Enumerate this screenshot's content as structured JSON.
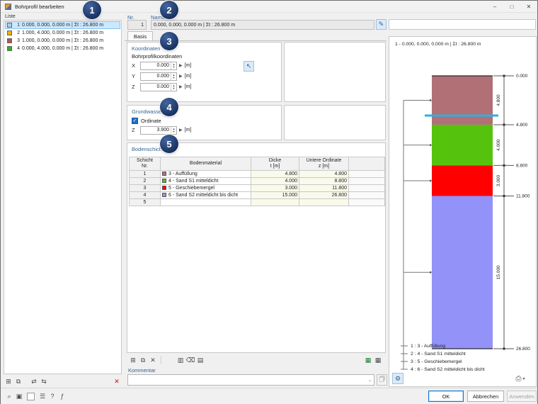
{
  "window": {
    "title": "Bohrprofil bearbeiten",
    "minimize": "–",
    "maximize": "□",
    "close": "✕"
  },
  "annotations": [
    "1",
    "2",
    "3",
    "4",
    "5"
  ],
  "liste": {
    "label": "Liste",
    "items": [
      {
        "num": "1",
        "text": "0.000, 0.000, 0.000 m | Σt : 26.800 m",
        "color": "#a9cfe8",
        "selected": true
      },
      {
        "num": "2",
        "text": "1.000, 4.000, 0.000 m | Σt : 26.800 m",
        "color": "#f2b000",
        "selected": false
      },
      {
        "num": "3",
        "text": "1.000, 0.000, 0.000 m | Σt : 26.800 m",
        "color": "#b25454",
        "selected": false
      },
      {
        "num": "4",
        "text": "0.000, 4.000, 0.000 m | Σt : 26.800 m",
        "color": "#2fb11d",
        "selected": false
      }
    ]
  },
  "header": {
    "nr_label": "Nr.",
    "nr_value": "1",
    "name_label": "Name",
    "name_value": "0.000, 0.000, 0.000 m | Σt : 26.800 m"
  },
  "tab": {
    "label": "Basis"
  },
  "koordinaten": {
    "title": "Koordinaten",
    "subtitle": "Bohrprofilkoordinaten",
    "fields": [
      {
        "label": "X",
        "value": "0.000",
        "unit": "[m]"
      },
      {
        "label": "Y",
        "value": "0.000",
        "unit": "[m]"
      },
      {
        "label": "Z",
        "value": "0.000",
        "unit": "[m]"
      }
    ]
  },
  "grundwasser": {
    "title": "Grundwasser",
    "checkbox_label": "Ordinate",
    "checked": true,
    "field": {
      "label": "Z",
      "value": "3.900",
      "unit": "[m]"
    }
  },
  "bodenschichten": {
    "title": "Bodenschichten",
    "columns": [
      [
        "Schicht",
        "Nr."
      ],
      [
        "Bodenmaterial"
      ],
      [
        "Dicke",
        "t [m]"
      ],
      [
        "Untere Ordinate",
        "z [m]"
      ],
      [
        ""
      ]
    ],
    "rows": [
      {
        "nr": "1",
        "color": "#b17076",
        "material": "3 - Auffüllung",
        "dicke": "4.800",
        "ordinate": "4.800"
      },
      {
        "nr": "2",
        "color": "#55c30d",
        "material": "4 - Sand S1 mitteldicht",
        "dicke": "4.000",
        "ordinate": "8.800"
      },
      {
        "nr": "3",
        "color": "#fe0000",
        "material": "5 - Geschiebemergel",
        "dicke": "3.000",
        "ordinate": "11.800"
      },
      {
        "nr": "4",
        "color": "#9292f8",
        "material": "6 - Sand S2 mitteldicht bis dicht",
        "dicke": "15.000",
        "ordinate": "26.800"
      },
      {
        "nr": "5",
        "color": null,
        "material": "",
        "dicke": "",
        "ordinate": ""
      }
    ]
  },
  "kommentar": {
    "label": "Kommentar",
    "value": ""
  },
  "profile": {
    "title": "1 - 0.000, 0.000, 0.000 m | Σt : 26.800 m",
    "top_label": "0.000",
    "total_depth": 26.8,
    "water_level": 3.9,
    "water_color": "#29b1e6",
    "layers": [
      {
        "name": "1 : 3 - Auffüllung",
        "from": 0.0,
        "to": 4.8,
        "thickness_label": "4.800",
        "depth_label": "4.800",
        "color": "#b17076"
      },
      {
        "name": "2 : 4 - Sand S1 mitteldicht",
        "from": 4.8,
        "to": 8.8,
        "thickness_label": "4.000",
        "depth_label": "8.800",
        "color": "#55c30d"
      },
      {
        "name": "3 : 5 - Geschiebemergel",
        "from": 8.8,
        "to": 11.8,
        "thickness_label": "3.000",
        "depth_label": "11.800",
        "color": "#fe0000"
      },
      {
        "name": "4 : 6 - Sand S2 mitteldicht bis dicht",
        "from": 11.8,
        "to": 26.8,
        "thickness_label": "15.000",
        "depth_label": "26.800",
        "color": "#9292f8"
      }
    ]
  },
  "buttons": {
    "ok": "OK",
    "cancel": "Abbrechen",
    "apply": "Anwenden"
  }
}
